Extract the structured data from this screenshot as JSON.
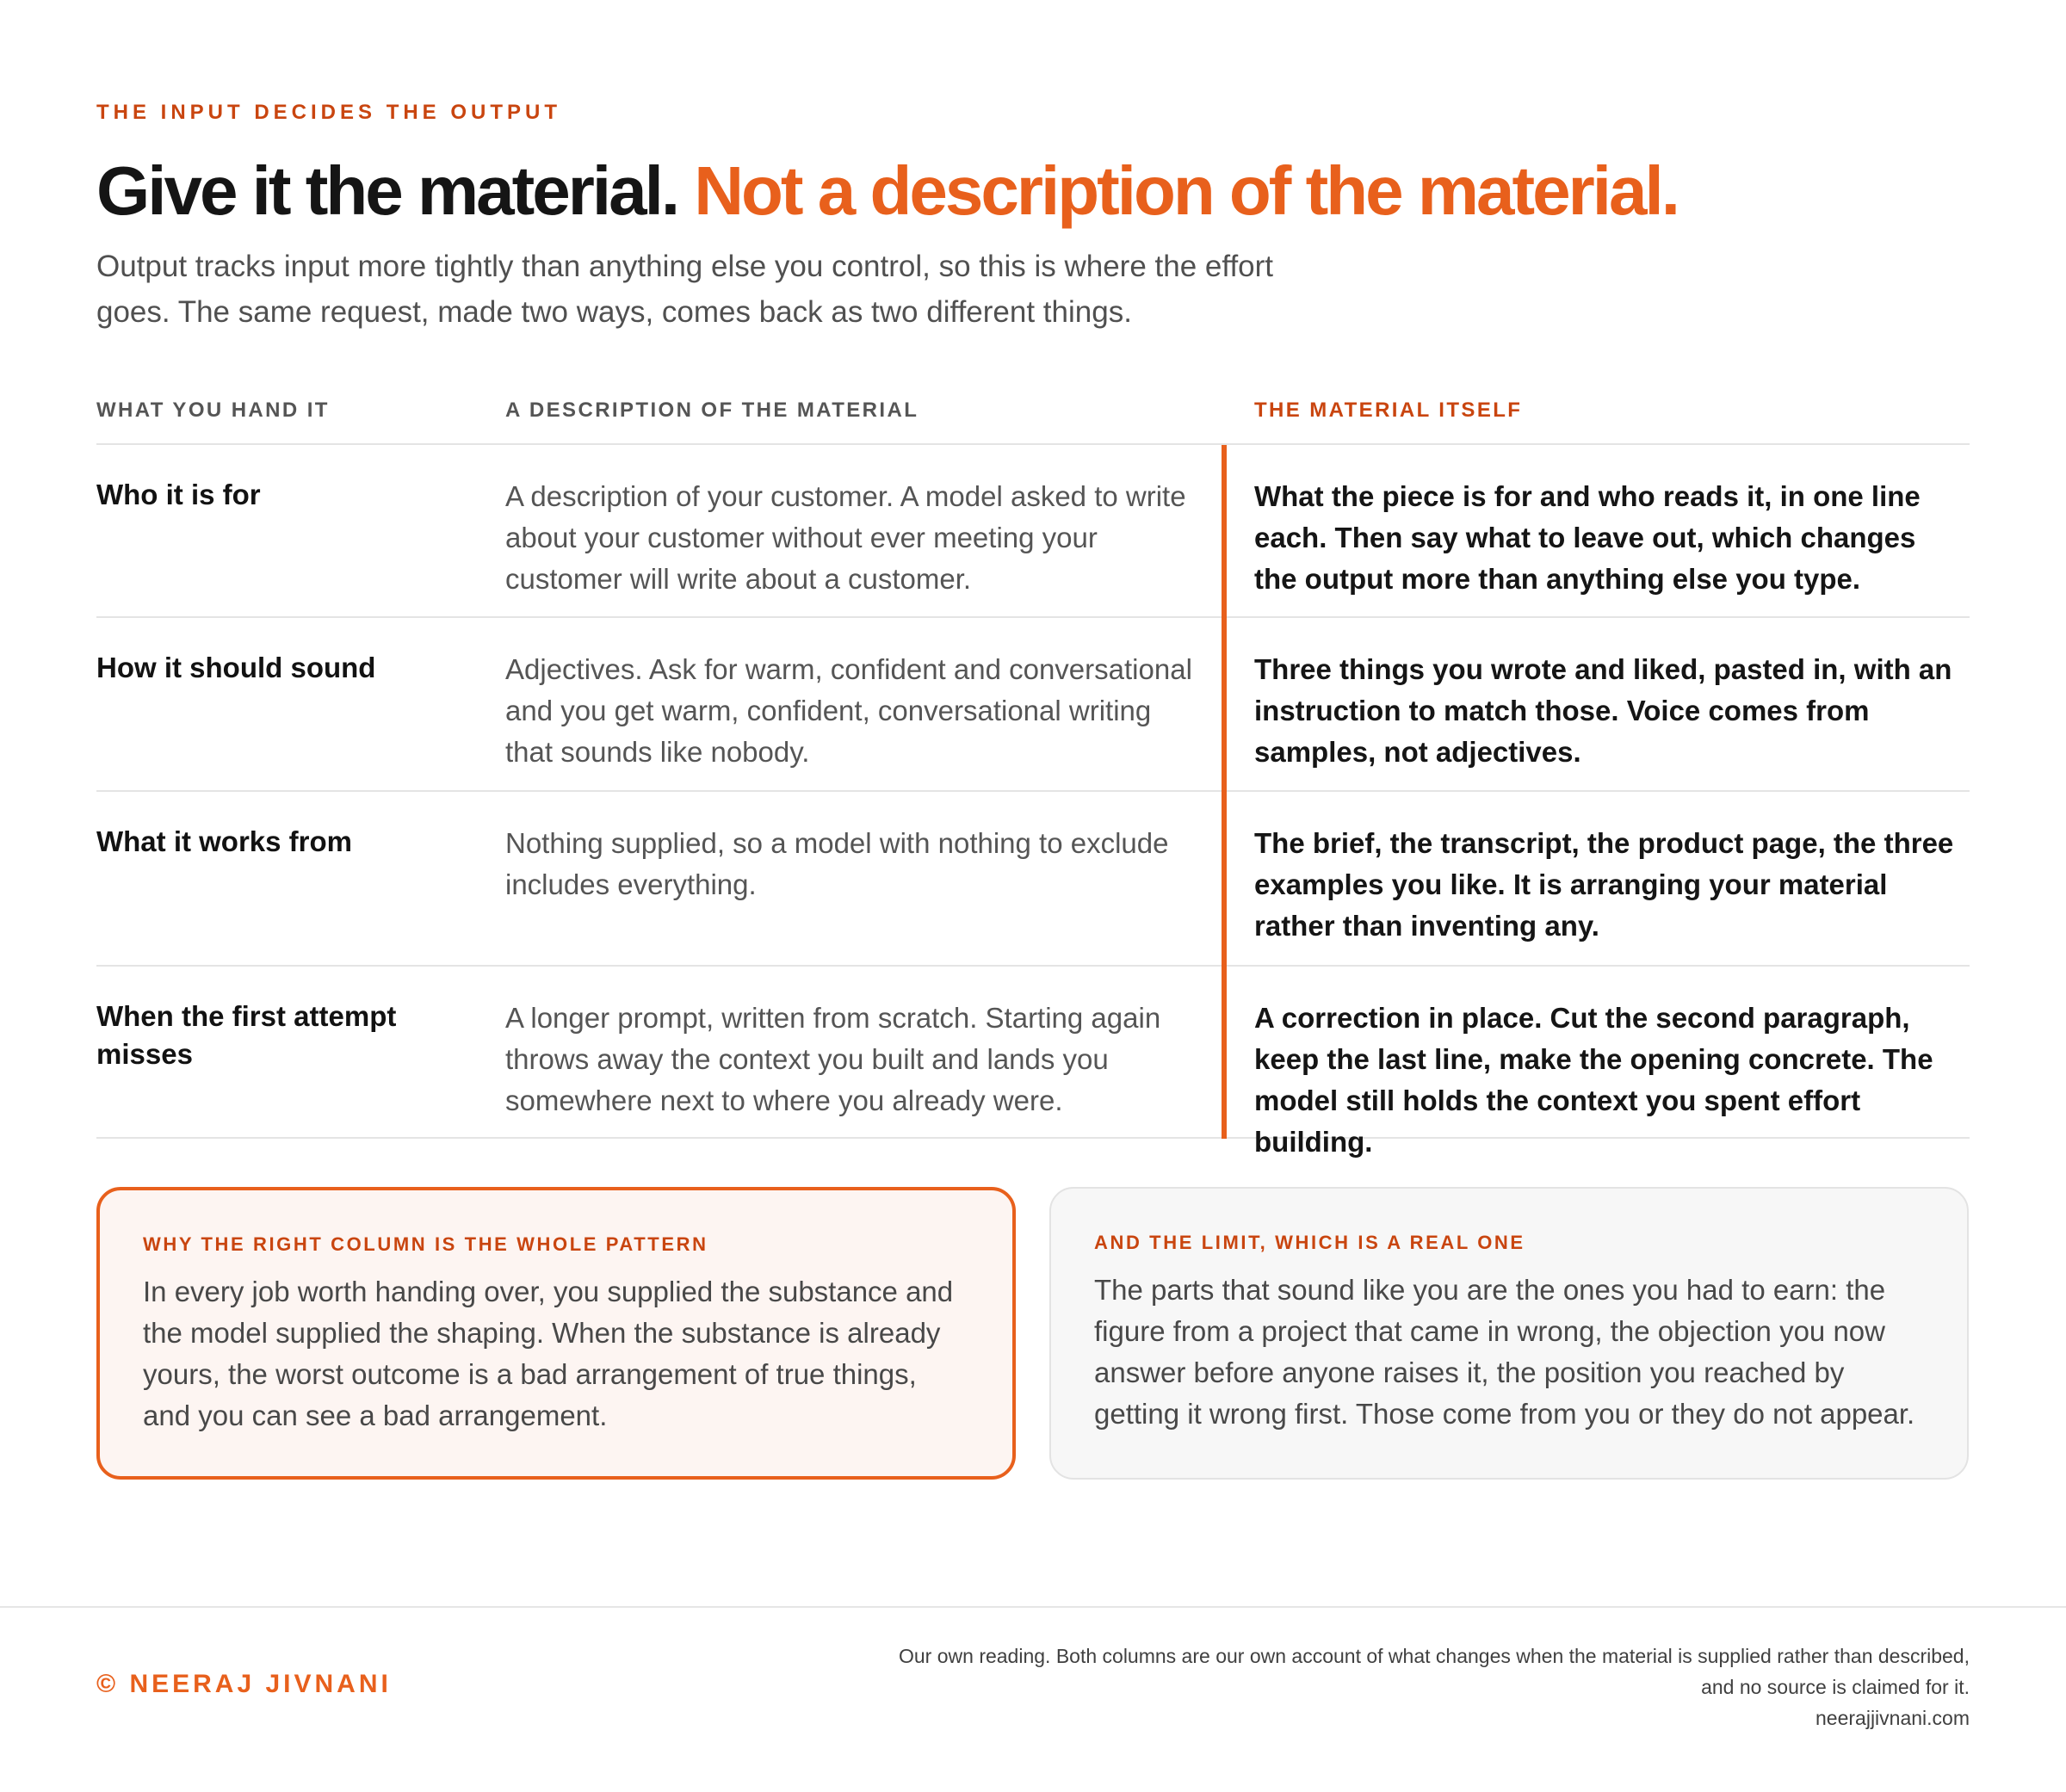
{
  "header": {
    "eyebrow": "THE INPUT DECIDES THE OUTPUT",
    "headline_black": "Give it the material.",
    "headline_orange": "Not a description of the material.",
    "subtitle": "Output tracks input more tightly than anything else you control, so this is where the effort goes. The same request, made two ways, comes back as two different things."
  },
  "table": {
    "columns": [
      "WHAT YOU HAND IT",
      "A DESCRIPTION OF THE MATERIAL",
      "THE MATERIAL ITSELF"
    ],
    "rows": [
      {
        "label": "Who it is for",
        "description": "A description of your customer. A model asked to write about your customer without ever meeting your customer will write about a customer.",
        "material": "What the piece is for and who reads it, in one line each. Then say what to leave out, which changes the output more than anything else you type."
      },
      {
        "label": "How it should sound",
        "description": "Adjectives. Ask for warm, confident and conversational and you get warm, confident, conversational writing that sounds like nobody.",
        "material": "Three things you wrote and liked, pasted in, with an instruction to match those. Voice comes from samples, not adjectives."
      },
      {
        "label": "What it works from",
        "description": "Nothing supplied, so a model with nothing to exclude includes everything.",
        "material": "The brief, the transcript, the product page, the three examples you like. It is arranging your material rather than inventing any."
      },
      {
        "label": "When the first attempt misses",
        "description": "A longer prompt, written from scratch. Starting again throws away the context you built and lands you somewhere next to where you already were.",
        "material": "A correction in place. Cut the second paragraph, keep the last line, make the opening concrete. The model still holds the context you spent effort building."
      }
    ]
  },
  "cards": {
    "left": {
      "title": "WHY THE RIGHT COLUMN IS THE WHOLE PATTERN",
      "text": "In every job worth handing over, you supplied the substance and the model supplied the shaping. When the substance is already yours, the worst outcome is a bad arrangement of true things, and you can see a bad arrangement."
    },
    "right": {
      "title": "AND THE LIMIT, WHICH IS A REAL ONE",
      "text": "The parts that sound like you are the ones you had to earn: the figure from a project that came in wrong, the objection you now answer before anyone raises it, the position you reached by getting it wrong first. Those come from you or they do not appear."
    }
  },
  "footer": {
    "brand": "© NEERAJ JIVNANI",
    "note_line1": "Our own reading. Both columns are our own account of what changes when the material is supplied rather than described,",
    "note_line2": "and no source is claimed for it.",
    "url": "neerajjivnani.com"
  },
  "colors": {
    "accent": "#e8601c",
    "accent_dark": "#c9450f",
    "text": "#151515",
    "muted": "#555555"
  }
}
